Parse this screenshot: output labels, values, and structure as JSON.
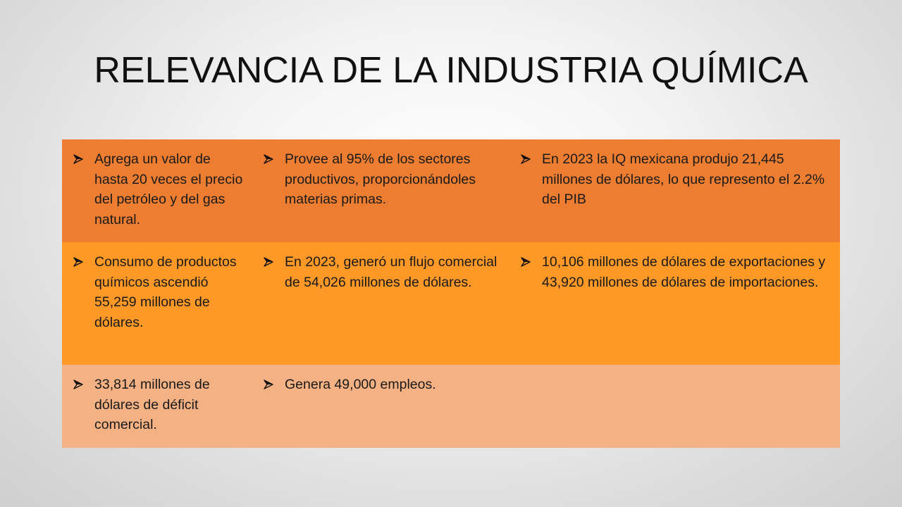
{
  "title": "RELEVANCIA DE LA INDUSTRIA QUÍMICA",
  "colors": {
    "row1": "#ed7d31",
    "row2": "#fe9827",
    "row3": "#f4b183"
  },
  "bullet_icon": "arrowhead-bullet-icon",
  "table": {
    "rows": [
      [
        "Agrega un valor de hasta 20 veces el precio del petróleo y del gas natural.",
        "Provee al 95% de los sectores productivos, proporcionándoles materias primas.",
        "En 2023 la IQ mexicana produjo 21,445 millones de dólares, lo que represento el 2.2% del PIB"
      ],
      [
        "Consumo de productos químicos ascendió 55,259 millones de dólares.",
        "En 2023, generó un flujo comercial de 54,026 millones de dólares.",
        "10,106 millones de dólares de exportaciones y 43,920 millones de dólares de importaciones."
      ],
      [
        "33,814 millones de dólares  de déficit comercial.",
        "Genera 49,000 empleos.",
        ""
      ]
    ]
  }
}
